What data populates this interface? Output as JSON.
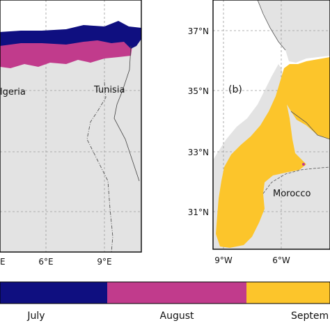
{
  "left_map": {
    "country_labels": [
      "lgeria",
      "Tunisia"
    ],
    "x_ticks": [
      "E",
      "6°E",
      "9°E"
    ]
  },
  "right_map": {
    "panel_label": "(b)",
    "country_label": "Morocco",
    "y_ticks": [
      "37°N",
      "35°N",
      "33°N",
      "31°N"
    ],
    "x_ticks": [
      "9°W",
      "6°W"
    ]
  },
  "legend": {
    "entries": [
      {
        "label": "July",
        "color": "#0f0f80"
      },
      {
        "label": "August",
        "color": "#c13b8c"
      },
      {
        "label": "Septem",
        "color": "#fcc52b"
      }
    ]
  },
  "colors": {
    "land": "#e3e3e3",
    "sea": "#ffffff",
    "border": "#555555",
    "grid": "#9a9a9a",
    "july": "#0f0f80",
    "august": "#c13b8c",
    "september": "#fcc52b"
  }
}
